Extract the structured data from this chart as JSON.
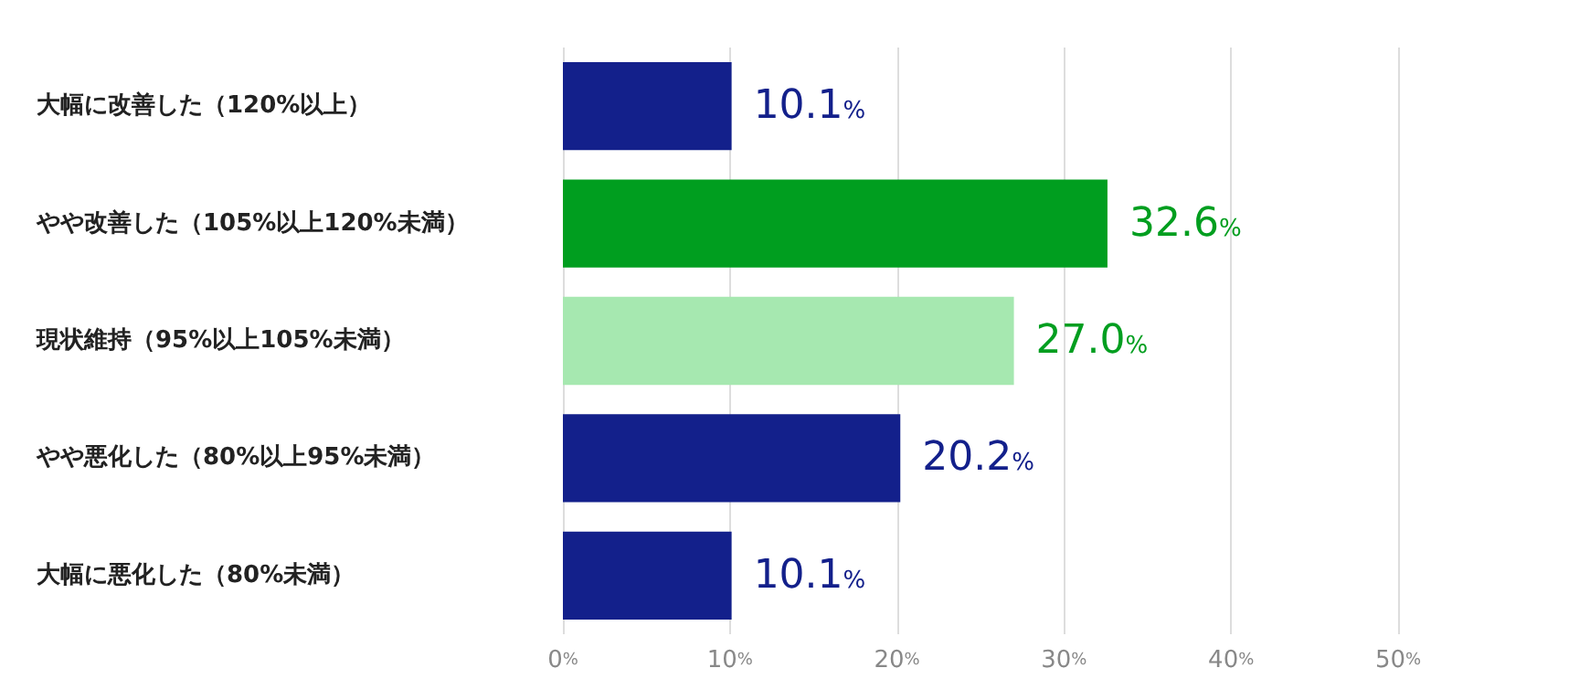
{
  "chart_data": {
    "type": "bar",
    "orientation": "horizontal",
    "categories": [
      "大幅に改善した（120%以上）",
      "やや改善した（105%以上120%未満）",
      "現状維持（95%以上105%未満）",
      "やや悪化した（80%以上95%未満）",
      "大幅に悪化した（80%未満）"
    ],
    "values": [
      10.1,
      32.6,
      27.0,
      20.2,
      10.1
    ],
    "colors": [
      "#13208b",
      "#009e1f",
      "#a6e8b0",
      "#13208b",
      "#13208b"
    ],
    "value_labels": [
      "10.1%",
      "32.6%",
      "27.0%",
      "20.2%",
      "10.1%"
    ],
    "xlim": [
      0,
      50
    ],
    "xticks": [
      {
        "value": 0,
        "label": "0%"
      },
      {
        "value": 10,
        "label": "10%"
      },
      {
        "value": 20,
        "label": "20%"
      },
      {
        "value": 30,
        "label": "30%"
      },
      {
        "value": 40,
        "label": "40%"
      },
      {
        "value": 50,
        "label": "50%"
      }
    ],
    "grid": "x"
  }
}
